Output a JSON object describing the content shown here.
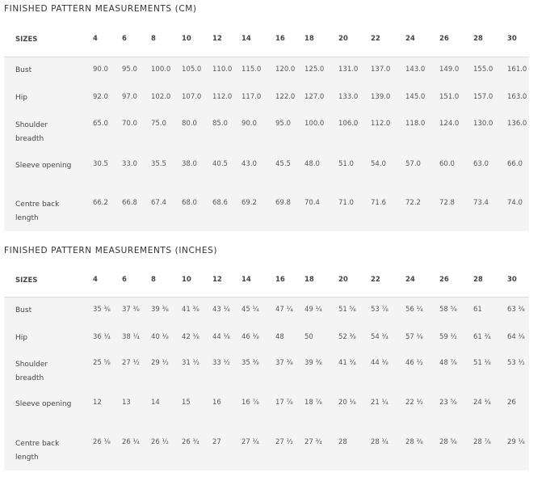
{
  "tables": [
    {
      "title": "FINISHED PATTERN MEASUREMENTS (CM)",
      "header_label": "SIZES",
      "sizes": [
        "4",
        "6",
        "8",
        "10",
        "12",
        "14",
        "16",
        "18",
        "20",
        "22",
        "24",
        "26",
        "28",
        "30"
      ],
      "rows": [
        {
          "label": "Bust",
          "values": [
            "90.0",
            "95.0",
            "100.0",
            "105.0",
            "110.0",
            "115.0",
            "120.0",
            "125.0",
            "131.0",
            "137.0",
            "143.0",
            "149.0",
            "155.0",
            "161.0"
          ]
        },
        {
          "label": "Hip",
          "values": [
            "92.0",
            "97.0",
            "102.0",
            "107.0",
            "112.0",
            "117.0",
            "122.0",
            "127.0",
            "133.0",
            "139.0",
            "145.0",
            "151.0",
            "157.0",
            "163.0"
          ]
        },
        {
          "label": "Shoulder breadth",
          "values": [
            "65.0",
            "70.0",
            "75.0",
            "80.0",
            "85.0",
            "90.0",
            "95.0",
            "100.0",
            "106.0",
            "112.0",
            "118.0",
            "124.0",
            "130.0",
            "136.0"
          ]
        },
        {
          "label": "Sleeve opening",
          "values": [
            "30.5",
            "33.0",
            "35.5",
            "38.0",
            "40.5",
            "43.0",
            "45.5",
            "48.0",
            "51.0",
            "54.0",
            "57.0",
            "60.0",
            "63.0",
            "66.0"
          ]
        },
        {
          "label": "Centre back length",
          "values": [
            "66.2",
            "66.8",
            "67.4",
            "68.0",
            "68.6",
            "69.2",
            "69.8",
            "70.4",
            "71.0",
            "71.6",
            "72.2",
            "72.8",
            "73.4",
            "74.0"
          ]
        }
      ]
    },
    {
      "title": "FINISHED PATTERN MEASUREMENTS (INCHES)",
      "header_label": "SIZES",
      "sizes": [
        "4",
        "6",
        "8",
        "10",
        "12",
        "14",
        "16",
        "18",
        "20",
        "22",
        "24",
        "26",
        "28",
        "30"
      ],
      "rows": [
        {
          "label": "Bust",
          "values": [
            "35 ³⁄₈",
            "37 ³⁄₈",
            "39 ³⁄₈",
            "41 ³⁄₈",
            "43 ¹⁄₄",
            "45 ¹⁄₄",
            "47 ¹⁄₄",
            "49 ¹⁄₄",
            "51 ⁵⁄₈",
            "53 ⁷⁄₈",
            "56 ¹⁄₄",
            "58 ⁵⁄₈",
            "61",
            "63 ³⁄₈"
          ]
        },
        {
          "label": "Hip",
          "values": [
            "36 ¹⁄₄",
            "38 ¹⁄₄",
            "40 ¹⁄₈",
            "42 ¹⁄₈",
            "44 ¹⁄₈",
            "46 ¹⁄₈",
            "48",
            "50",
            "52 ³⁄₈",
            "54 ³⁄₄",
            "57 ¹⁄₈",
            "59 ¹⁄₂",
            "61 ³⁄₄",
            "64 ¹⁄₈"
          ]
        },
        {
          "label": "Shoulder breadth",
          "values": [
            "25 ⁵⁄₈",
            "27 ¹⁄₂",
            "29 ¹⁄₂",
            "31 ¹⁄₂",
            "33 ¹⁄₂",
            "35 ³⁄₈",
            "37 ³⁄₈",
            "39 ³⁄₈",
            "41 ³⁄₄",
            "44 ¹⁄₈",
            "46 ¹⁄₂",
            "48 ⁷⁄₈",
            "51 ¹⁄₈",
            "53 ¹⁄₂"
          ]
        },
        {
          "label": "Sleeve opening",
          "values": [
            "12",
            "13",
            "14",
            "15",
            "16",
            "16 ⁷⁄₈",
            "17 ⁷⁄₈",
            "18 ⁷⁄₈",
            "20 ¹⁄₈",
            "21 ¹⁄₄",
            "22 ¹⁄₂",
            "23 ⁵⁄₈",
            "24 ³⁄₄",
            "26"
          ]
        },
        {
          "label": "Centre back length",
          "values": [
            "26 ¹⁄₈",
            "26 ¹⁄₄",
            "26 ¹⁄₂",
            "26 ³⁄₄",
            "27",
            "27 ¹⁄₄",
            "27 ¹⁄₂",
            "27 ³⁄₄",
            "28",
            "28 ¹⁄₄",
            "28 ³⁄₈",
            "28 ⁵⁄₈",
            "28 ⁷⁄₈",
            "29 ¹⁄₈"
          ]
        }
      ]
    }
  ]
}
